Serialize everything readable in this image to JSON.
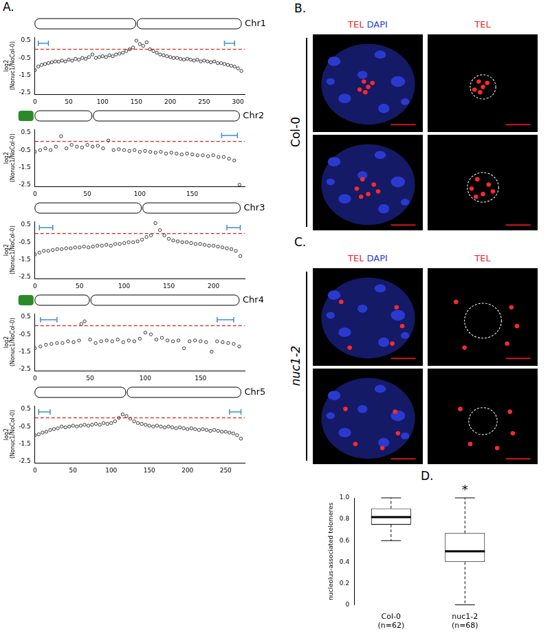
{
  "chart_data": [
    {
      "type": "scatter",
      "panel": "A.",
      "title": "Chr1",
      "y_label": "log2 (Nonuc1/NoCol-0)",
      "x": [
        0,
        5,
        10,
        15,
        20,
        25,
        30,
        35,
        40,
        45,
        50,
        55,
        60,
        65,
        70,
        75,
        80,
        85,
        90,
        95,
        100,
        105,
        110,
        115,
        120,
        125,
        130,
        135,
        140,
        145,
        150,
        155,
        160,
        165,
        170,
        175,
        180,
        185,
        190,
        195,
        200,
        205,
        210,
        215,
        220,
        225,
        230,
        235,
        240,
        245,
        250,
        255,
        260,
        265,
        270,
        275,
        280,
        285,
        290,
        295,
        300,
        305
      ],
      "values": [
        -1.2,
        -1.0,
        -0.9,
        -0.85,
        -0.8,
        -0.75,
        -0.7,
        -0.72,
        -0.65,
        -0.7,
        -0.6,
        -0.65,
        -0.55,
        -0.6,
        -0.5,
        -0.55,
        -0.45,
        -0.3,
        -0.5,
        -0.45,
        -0.4,
        -0.45,
        -0.35,
        -0.4,
        -0.3,
        -0.25,
        -0.2,
        -0.1,
        0.0,
        0.1,
        0.5,
        0.3,
        0.2,
        0.4,
        0.0,
        -0.1,
        -0.2,
        -0.3,
        -0.35,
        -0.4,
        -0.45,
        -0.5,
        -0.5,
        -0.55,
        -0.6,
        -0.55,
        -0.6,
        -0.65,
        -0.6,
        -0.7,
        -0.65,
        -0.7,
        -0.75,
        -0.7,
        -0.8,
        -0.8,
        -0.85,
        -0.9,
        -0.95,
        -1.0,
        -1.1,
        -1.25
      ],
      "xlim": [
        0,
        310
      ],
      "xticks": [
        0,
        50,
        100,
        150,
        200,
        250,
        300
      ],
      "ylim": [
        -2.6,
        0.7
      ],
      "yticks": [
        -2.5,
        -1.5,
        -0.5,
        0.5
      ],
      "color": "#222222",
      "marker": "circle",
      "ref_line": 0,
      "ref_line_color": "#e02020",
      "line_style": "dashed",
      "centromere": 150,
      "telomere_regions": [
        [
          5,
          20
        ],
        [
          280,
          295
        ]
      ],
      "region_color": "#3a8fd8"
    },
    {
      "type": "scatter",
      "title": "Chr2",
      "y_label": "log2 (Nonuc1/NoCol-0)",
      "x": [
        0,
        5,
        10,
        15,
        20,
        25,
        30,
        35,
        40,
        45,
        50,
        55,
        60,
        65,
        70,
        75,
        80,
        85,
        90,
        95,
        100,
        105,
        110,
        115,
        120,
        125,
        130,
        135,
        140,
        145,
        150,
        155,
        160,
        165,
        170,
        175,
        180,
        185,
        190,
        195
      ],
      "values": [
        -0.6,
        -0.5,
        -0.4,
        -0.5,
        -0.3,
        0.3,
        -0.4,
        -0.2,
        -0.3,
        -0.35,
        -0.2,
        -0.3,
        -0.25,
        -0.4,
        0.05,
        -0.5,
        -0.45,
        -0.5,
        -0.55,
        -0.5,
        -0.6,
        -0.55,
        -0.6,
        -0.65,
        -0.6,
        -0.7,
        -0.65,
        -0.7,
        -0.75,
        -0.7,
        -0.75,
        -0.8,
        -0.8,
        -0.85,
        -0.8,
        -0.9,
        -0.9,
        -1.0,
        -1.1,
        -2.5
      ],
      "xlim": [
        0,
        200
      ],
      "xticks": [
        0,
        50,
        100,
        150
      ],
      "ylim": [
        -2.6,
        0.7
      ],
      "yticks": [
        -2.5,
        -1.5,
        -0.5,
        0.5
      ],
      "color": "#222222",
      "marker": "circle",
      "ref_line": 0,
      "ref_line_color": "#e02020",
      "line_style": "dashed",
      "centromere": 55,
      "nor_color": "#2a8a2a",
      "telomere_regions": [
        [
          178,
          193
        ]
      ],
      "region_color": "#3a8fd8"
    },
    {
      "type": "scatter",
      "title": "Chr3",
      "y_label": "log2 (Nonuc1/NoCol-0)",
      "x": [
        0,
        5,
        10,
        15,
        20,
        25,
        30,
        35,
        40,
        45,
        50,
        55,
        60,
        65,
        70,
        75,
        80,
        85,
        90,
        95,
        100,
        105,
        110,
        115,
        120,
        125,
        130,
        135,
        140,
        145,
        150,
        155,
        160,
        165,
        170,
        175,
        180,
        185,
        190,
        195,
        200,
        205,
        210,
        215,
        220,
        225,
        230
      ],
      "values": [
        -1.2,
        -1.1,
        -1.0,
        -1.0,
        -0.95,
        -0.9,
        -0.9,
        -0.85,
        -0.85,
        -0.8,
        -0.8,
        -0.75,
        -0.8,
        -0.75,
        -0.7,
        -0.7,
        -0.65,
        -0.7,
        -0.6,
        -0.6,
        -0.55,
        -0.5,
        -0.5,
        -0.45,
        -0.35,
        -0.2,
        -0.1,
        0.6,
        0.2,
        -0.1,
        -0.3,
        -0.4,
        -0.45,
        -0.5,
        -0.5,
        -0.55,
        -0.6,
        -0.6,
        -0.65,
        -0.7,
        -0.7,
        -0.75,
        -0.8,
        -0.85,
        -0.9,
        -1.0,
        -1.3
      ],
      "xlim": [
        0,
        235
      ],
      "xticks": [
        0,
        50,
        100,
        150,
        200
      ],
      "ylim": [
        -2.6,
        0.7
      ],
      "yticks": [
        -2.5,
        -1.5,
        -0.5,
        0.5
      ],
      "color": "#222222",
      "marker": "circle",
      "ref_line": 0,
      "ref_line_color": "#e02020",
      "line_style": "dashed",
      "centromere": 120,
      "telomere_regions": [
        [
          5,
          20
        ],
        [
          215,
          230
        ]
      ],
      "region_color": "#3a8fd8"
    },
    {
      "type": "scatter",
      "title": "Chr4",
      "y_label": "log2 (Nonuc1/NoCol-0)",
      "x": [
        0,
        5,
        10,
        15,
        20,
        25,
        30,
        35,
        40,
        42,
        45,
        50,
        55,
        60,
        65,
        70,
        75,
        80,
        85,
        90,
        95,
        100,
        105,
        110,
        115,
        120,
        125,
        130,
        135,
        140,
        145,
        150,
        155,
        160,
        165,
        170,
        175,
        180,
        185
      ],
      "values": [
        -1.3,
        -1.2,
        -1.1,
        -1.05,
        -1.0,
        -1.0,
        -0.9,
        -0.95,
        -0.85,
        0.1,
        0.25,
        -0.8,
        -1.0,
        -0.9,
        -0.85,
        -0.9,
        -0.8,
        -0.95,
        -0.85,
        -0.9,
        -0.75,
        -0.4,
        -0.5,
        -0.8,
        -0.7,
        -0.85,
        -0.9,
        -0.85,
        -1.3,
        -0.9,
        -0.85,
        -0.9,
        -0.95,
        -1.5,
        -0.9,
        -0.95,
        -1.0,
        -1.05,
        -1.2
      ],
      "xlim": [
        0,
        190
      ],
      "xticks": [
        0,
        50,
        100,
        150
      ],
      "ylim": [
        -2.6,
        0.7
      ],
      "yticks": [
        -2.5,
        -1.5,
        -0.5,
        0.5
      ],
      "color": "#222222",
      "marker": "circle",
      "ref_line": 0,
      "ref_line_color": "#e02020",
      "line_style": "dashed",
      "centromere": 50,
      "nor_color": "#2a8a2a",
      "telomere_regions": [
        [
          5,
          20
        ],
        [
          165,
          180
        ]
      ],
      "region_color": "#3a8fd8"
    },
    {
      "type": "scatter",
      "title": "Chr5",
      "y_label": "log2 (Nonuc1/NoCol-0)",
      "x": [
        0,
        5,
        10,
        15,
        20,
        25,
        30,
        35,
        40,
        45,
        50,
        55,
        60,
        65,
        70,
        75,
        80,
        85,
        90,
        95,
        100,
        105,
        110,
        115,
        120,
        125,
        130,
        135,
        140,
        145,
        150,
        155,
        160,
        165,
        170,
        175,
        180,
        185,
        190,
        195,
        200,
        205,
        210,
        215,
        220,
        225,
        230,
        235,
        240,
        245,
        250,
        255,
        260,
        265,
        270
      ],
      "values": [
        -1.0,
        -0.95,
        -0.85,
        -0.8,
        -0.7,
        -0.65,
        -0.6,
        -0.5,
        -0.55,
        -0.5,
        -0.45,
        -0.5,
        -0.45,
        -0.4,
        -0.45,
        -0.4,
        -0.35,
        -0.4,
        -0.3,
        -0.35,
        -0.3,
        -0.2,
        0.0,
        0.2,
        0.1,
        -0.05,
        -0.2,
        -0.3,
        -0.35,
        -0.4,
        -0.45,
        -0.5,
        -0.45,
        -0.5,
        -0.55,
        -0.5,
        -0.55,
        -0.6,
        -0.55,
        -0.6,
        -0.65,
        -0.6,
        -0.65,
        -0.7,
        -0.65,
        -0.7,
        -0.75,
        -0.7,
        -0.75,
        -0.8,
        -0.8,
        -0.85,
        -0.9,
        -1.0,
        -1.2
      ],
      "xlim": [
        0,
        275
      ],
      "xticks": [
        0,
        50,
        100,
        150,
        200,
        250
      ],
      "ylim": [
        -2.6,
        0.7
      ],
      "yticks": [
        -2.5,
        -1.5,
        -0.5,
        0.5
      ],
      "color": "#222222",
      "marker": "circle",
      "ref_line": 0,
      "ref_line_color": "#e02020",
      "line_style": "dashed",
      "centromere": 120,
      "telomere_regions": [
        [
          5,
          20
        ],
        [
          255,
          270
        ]
      ],
      "region_color": "#3a8fd8"
    },
    {
      "type": "box",
      "panel": "D.",
      "y_label": "nucleolus-associated telomeres",
      "categories": [
        "Col-0",
        "nuc1-2"
      ],
      "n_labels": [
        "(n=62)",
        "(n=68)"
      ],
      "min": [
        0.6,
        0.0
      ],
      "q1": [
        0.75,
        0.4
      ],
      "median": [
        0.82,
        0.5
      ],
      "q3": [
        0.9,
        0.67
      ],
      "max": [
        1.0,
        1.0
      ],
      "ylim": [
        0,
        1
      ],
      "yticks": [
        0,
        0.2,
        0.4,
        0.6,
        0.8,
        {
          "value": 1,
          "label": "1.0"
        }
      ],
      "color": "#ffffff",
      "line_style": "dashed",
      "annotations": [
        {
          "category": "nuc1-2",
          "text": "*"
        }
      ]
    }
  ],
  "images": [
    {
      "panel": "B.",
      "row_label": "Col-0",
      "columns": [
        [
          {
            "text": "TEL",
            "color": "#e8251e"
          },
          {
            "text": "DAPI",
            "color": "#1f3fd8"
          }
        ],
        [
          {
            "text": "TEL",
            "color": "#e8251e"
          }
        ]
      ]
    },
    {
      "panel": "C.",
      "row_label": "nuc1-2",
      "columns": [
        [
          {
            "text": "TEL",
            "color": "#e8251e"
          },
          {
            "text": "DAPI",
            "color": "#1f3fd8"
          }
        ],
        [
          {
            "text": "TEL",
            "color": "#e8251e"
          }
        ]
      ]
    }
  ]
}
